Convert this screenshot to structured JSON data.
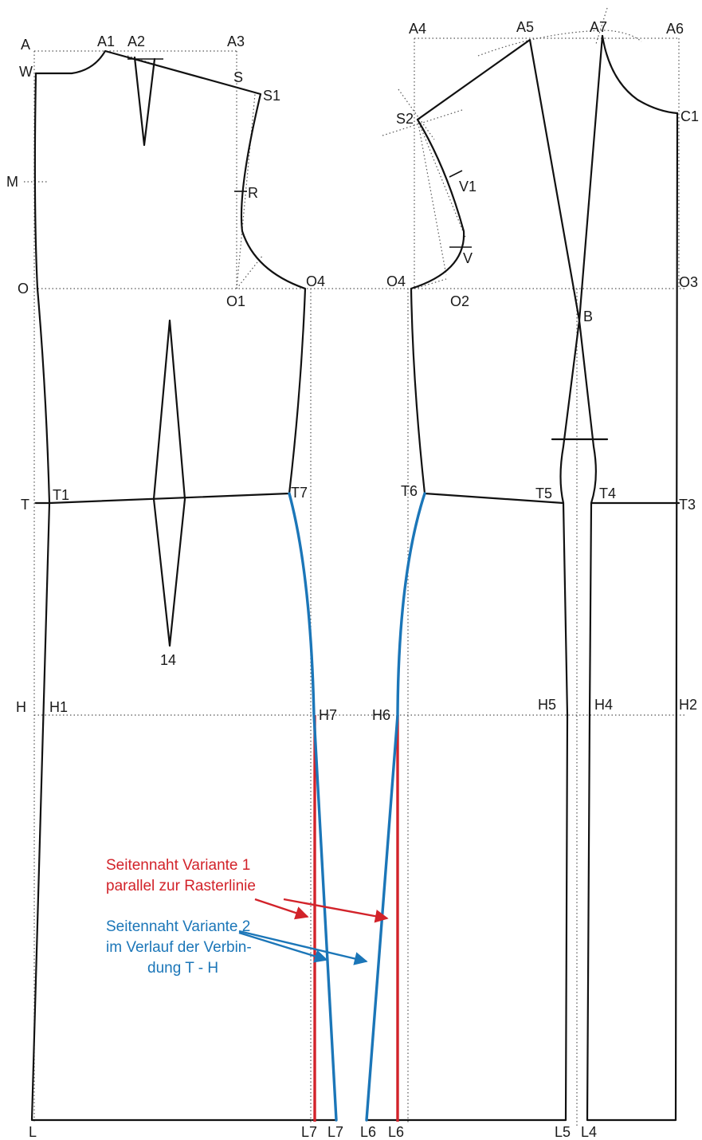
{
  "colors": {
    "line": "#111111",
    "grid": "#555555",
    "variant1": "#d2232a",
    "variant2": "#1b76b8"
  },
  "labels": {
    "A": "A",
    "W": "W",
    "M": "M",
    "O": "O",
    "T": "T",
    "H": "H",
    "L": "L",
    "A1": "A1",
    "A2": "A2",
    "A3": "A3",
    "S": "S",
    "S1": "S1",
    "R": "R",
    "O1": "O1",
    "O4l": "O4",
    "T1": "T1",
    "T7": "T7",
    "n14": "14",
    "H1": "H1",
    "H7": "H7",
    "L7r": "L7",
    "L7b": "L7",
    "A4": "A4",
    "A5": "A5",
    "A7": "A7",
    "A6": "A6",
    "S2": "S2",
    "V1": "V1",
    "V": "V",
    "O4r": "O4",
    "O2": "O2",
    "O3": "O3",
    "B": "B",
    "C1": "C1",
    "T6": "T6",
    "T5": "T5",
    "T4": "T4",
    "T3": "T3",
    "H6": "H6",
    "H5": "H5",
    "H4": "H4",
    "H2": "H2",
    "L6b": "L6",
    "L6r": "L6",
    "L5": "L5",
    "L4": "L4"
  },
  "annotations": {
    "variant1_line1": "Seitennaht Variante 1",
    "variant1_line2": "parallel zur Rasterlinie",
    "variant2_line1": "Seitennaht Variante 2",
    "variant2_line2": "im Verlauf der Verbin-",
    "variant2_line3": "dung T - H"
  }
}
